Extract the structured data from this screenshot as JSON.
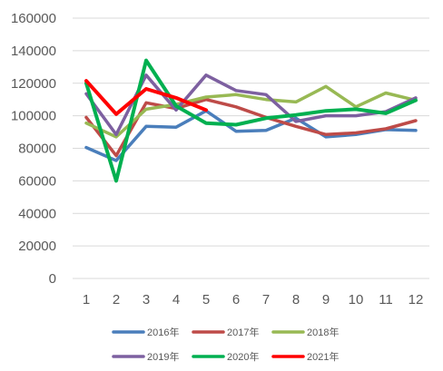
{
  "chart_data": {
    "type": "line",
    "title": "",
    "xlabel": "",
    "ylabel": "",
    "x": [
      1,
      2,
      3,
      4,
      5,
      6,
      7,
      8,
      9,
      10,
      11,
      12
    ],
    "x_tick_labels": [
      "1",
      "2",
      "3",
      "4",
      "5",
      "6",
      "7",
      "8",
      "9",
      "10",
      "11",
      "12"
    ],
    "ylim": [
      0,
      160000
    ],
    "y_ticks": [
      0,
      20000,
      40000,
      60000,
      80000,
      100000,
      120000,
      140000,
      160000
    ],
    "y_tick_labels": [
      "0",
      "20000",
      "40000",
      "60000",
      "80000",
      "100000",
      "120000",
      "140000",
      "160000"
    ],
    "grid": true,
    "legend_position": "bottom",
    "series": [
      {
        "name": "2016年",
        "color": "#4a7ebb",
        "values": [
          80500,
          72500,
          93500,
          93000,
          103000,
          90500,
          91000,
          98500,
          87000,
          88500,
          91500,
          91000
        ]
      },
      {
        "name": "2017年",
        "color": "#be4b48",
        "values": [
          99000,
          75500,
          108000,
          104500,
          110000,
          105500,
          99000,
          93500,
          88500,
          89500,
          92000,
          97000
        ]
      },
      {
        "name": "2018年",
        "color": "#98b954",
        "values": [
          95500,
          87000,
          104000,
          107000,
          111500,
          113000,
          110000,
          108500,
          118000,
          105500,
          114000,
          109500
        ]
      },
      {
        "name": "2019年",
        "color": "#7d60a0",
        "values": [
          113500,
          88500,
          125000,
          103500,
          125000,
          115500,
          113000,
          96500,
          100000,
          100000,
          102500,
          111000
        ]
      },
      {
        "name": "2020年",
        "color": "#00b050",
        "values": [
          120000,
          60000,
          134000,
          106000,
          95500,
          94500,
          98500,
          100500,
          103000,
          104000,
          101500,
          109500
        ]
      },
      {
        "name": "2021年",
        "color": "#ff0000",
        "values": [
          121500,
          101000,
          116500,
          111000,
          103500,
          null,
          null,
          null,
          null,
          null,
          null,
          null
        ]
      }
    ]
  }
}
